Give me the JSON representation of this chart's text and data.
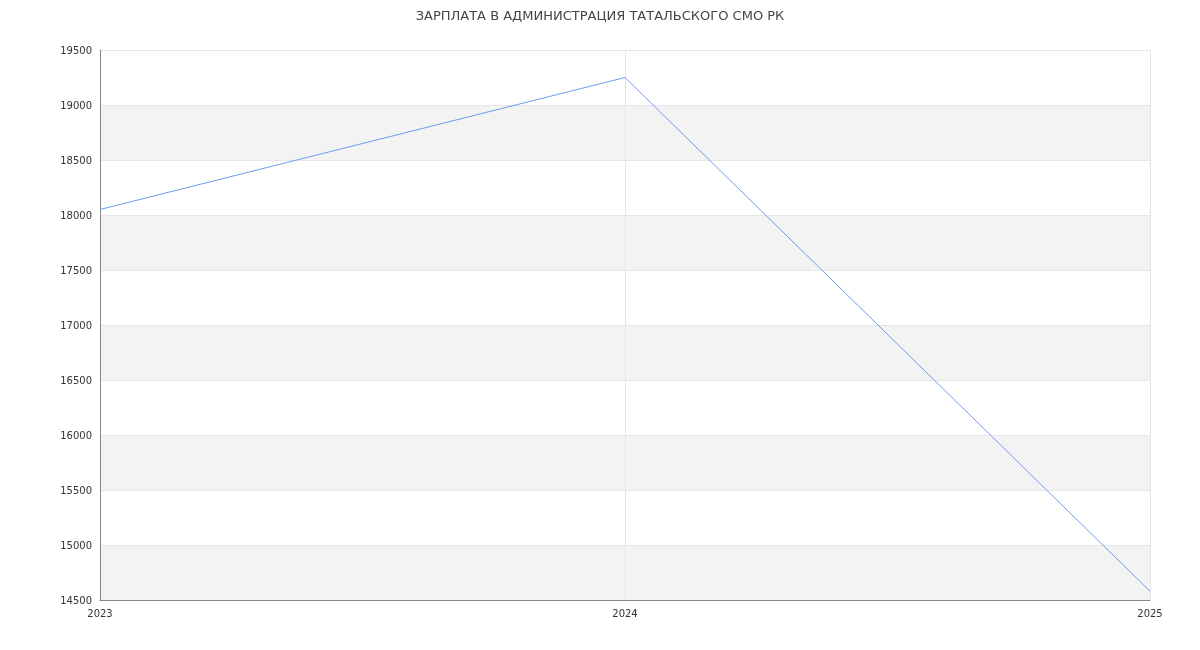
{
  "chart_data": {
    "type": "line",
    "title": "ЗАРПЛАТА В АДМИНИСТРАЦИЯ ТАТАЛЬСКОГО СМО РК",
    "categories": [
      "2023",
      "2024",
      "2025"
    ],
    "series": [
      {
        "color": "#6f9cf0",
        "values": [
          18050,
          19250,
          14580
        ]
      }
    ],
    "ylim": [
      14500,
      19500
    ],
    "yticks": [
      14500,
      15000,
      15500,
      16000,
      16500,
      17000,
      17500,
      18000,
      18500,
      19000,
      19500
    ],
    "grid": true,
    "marker": "none",
    "line_style": "solid"
  }
}
